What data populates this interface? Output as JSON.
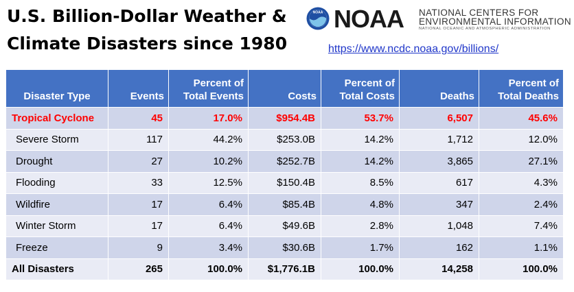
{
  "title": {
    "line1": "U.S. Billion-Dollar Weather &",
    "line2": "Climate Disasters since 1980"
  },
  "logo": {
    "wordmark": "NOAA",
    "line1": "NATIONAL CENTERS FOR",
    "line2": "ENVIRONMENTAL INFORMATION",
    "line3": "NATIONAL OCEANIC AND ATMOSPHERIC ADMINISTRATION",
    "emblem_text": "NOAA",
    "colors": {
      "emblem_outer": "#1f4fa3",
      "emblem_inner": "#7fc4ea"
    }
  },
  "link": {
    "text": "https://www.ncdc.noaa.gov/billions/"
  },
  "table": {
    "headers": {
      "type": "Disaster Type",
      "events": "Events",
      "pct_events_1": "Percent of",
      "pct_events_2": "Total Events",
      "costs": "Costs",
      "pct_costs_1": "Percent of",
      "pct_costs_2": "Total Costs",
      "deaths": "Deaths",
      "pct_deaths_1": "Percent of",
      "pct_deaths_2": "Total Deaths"
    },
    "rows": [
      {
        "type": "Tropical Cyclone",
        "events": "45",
        "pct_events": "17.0%",
        "costs": "$954.4B",
        "pct_costs": "53.7%",
        "deaths": "6,507",
        "pct_deaths": "45.6%"
      },
      {
        "type": "Severe Storm",
        "events": "117",
        "pct_events": "44.2%",
        "costs": "$253.0B",
        "pct_costs": "14.2%",
        "deaths": "1,712",
        "pct_deaths": "12.0%"
      },
      {
        "type": "Drought",
        "events": "27",
        "pct_events": "10.2%",
        "costs": "$252.7B",
        "pct_costs": "14.2%",
        "deaths": "3,865",
        "pct_deaths": "27.1%"
      },
      {
        "type": "Flooding",
        "events": "33",
        "pct_events": "12.5%",
        "costs": "$150.4B",
        "pct_costs": "8.5%",
        "deaths": "617",
        "pct_deaths": "4.3%"
      },
      {
        "type": "Wildfire",
        "events": "17",
        "pct_events": "6.4%",
        "costs": "$85.4B",
        "pct_costs": "4.8%",
        "deaths": "347",
        "pct_deaths": "2.4%"
      },
      {
        "type": "Winter Storm",
        "events": "17",
        "pct_events": "6.4%",
        "costs": "$49.6B",
        "pct_costs": "2.8%",
        "deaths": "1,048",
        "pct_deaths": "7.4%"
      },
      {
        "type": "Freeze",
        "events": "9",
        "pct_events": "3.4%",
        "costs": "$30.6B",
        "pct_costs": "1.7%",
        "deaths": "162",
        "pct_deaths": "1.1%"
      },
      {
        "type": "All Disasters",
        "events": "265",
        "pct_events": "100.0%",
        "costs": "$1,776.1B",
        "pct_costs": "100.0%",
        "deaths": "14,258",
        "pct_deaths": "100.0%"
      }
    ],
    "colors": {
      "header_bg": "#4472c4",
      "row_dark": "#cfd5ea",
      "row_light": "#e9ebf5",
      "highlight_text": "#ff0000"
    }
  }
}
